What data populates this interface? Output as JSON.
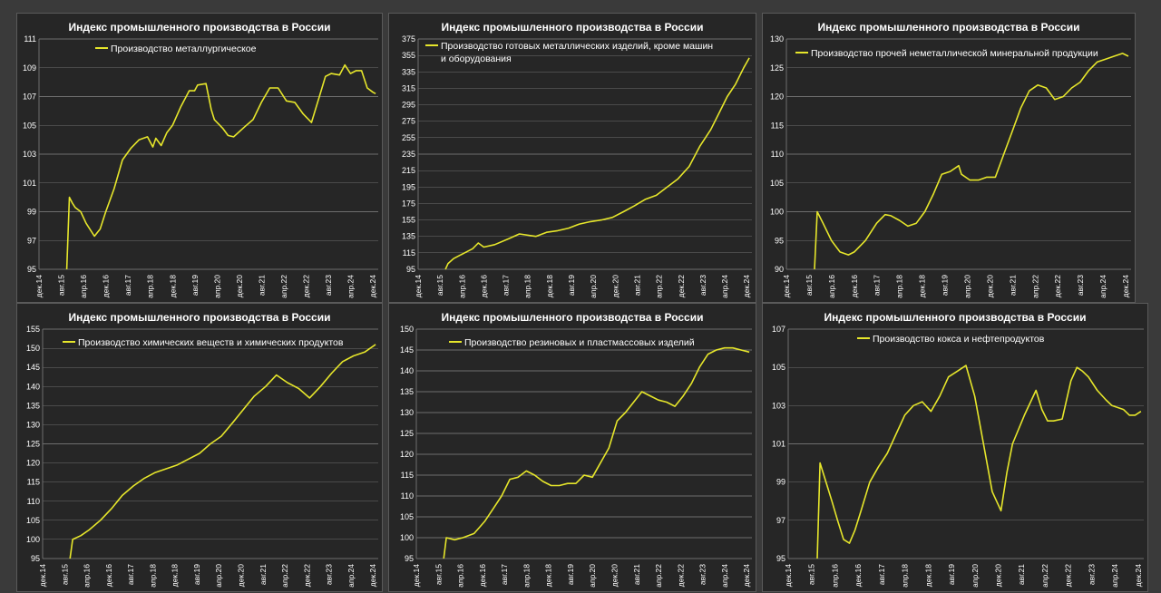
{
  "chart_data": [
    {
      "type": "line",
      "title": "Индекс промышленного производства в России",
      "series": [
        {
          "name": "Производство металлургическое",
          "x": [
            2015.75,
            2015.83,
            2015.92,
            2016.0,
            2016.17,
            2016.33,
            2016.58,
            2016.75,
            2016.92,
            2017.17,
            2017.42,
            2017.67,
            2017.92,
            2018.17,
            2018.33,
            2018.42,
            2018.58,
            2018.75,
            2018.92,
            2019.17,
            2019.42,
            2019.58,
            2019.67,
            2019.92,
            2020.08,
            2020.17,
            2020.42,
            2020.58,
            2020.75,
            2021.08,
            2021.33,
            2021.58,
            2021.83,
            2022.08,
            2022.33,
            2022.58,
            2022.83,
            2023.08,
            2023.33,
            2023.5,
            2023.67,
            2023.92,
            2024.08,
            2024.25,
            2024.42,
            2024.58,
            2024.75,
            2024.92,
            2025.0
          ],
          "values": [
            95.0,
            100.0,
            99.6,
            99.3,
            99.0,
            98.2,
            97.3,
            97.8,
            99.0,
            100.6,
            102.6,
            103.4,
            104.0,
            104.2,
            103.5,
            104.1,
            103.6,
            104.5,
            105.0,
            106.3,
            107.4,
            107.4,
            107.8,
            107.9,
            106.1,
            105.4,
            104.8,
            104.3,
            104.2,
            104.9,
            105.4,
            106.6,
            107.6,
            107.6,
            106.7,
            106.6,
            105.8,
            105.2,
            107.1,
            108.4,
            108.6,
            108.5,
            109.2,
            108.6,
            108.8,
            108.8,
            107.6,
            107.3,
            107.2
          ]
        }
      ],
      "ylim": [
        95,
        111
      ],
      "yticks": [
        95,
        97,
        99,
        101,
        103,
        105,
        107,
        109,
        111
      ],
      "xlim": [
        2014.92,
        2025.08
      ],
      "xtick_labels": [
        "дек.14",
        "авг.15",
        "апр.16",
        "дек.16",
        "авг.17",
        "апр.18",
        "дек.18",
        "авг.19",
        "апр.20",
        "дек.20",
        "авг.21",
        "апр.22",
        "дек.22",
        "авг.23",
        "апр.24",
        "дек.24"
      ],
      "grid": true,
      "legend_placement": "top-left"
    },
    {
      "type": "line",
      "title": "Индекс промышленного производства в России",
      "series": [
        {
          "name": "Производство готовых металлических изделий, кроме машин и оборудования",
          "x": [
            2015.75,
            2015.83,
            2016.0,
            2016.33,
            2016.58,
            2016.75,
            2016.92,
            2017.25,
            2017.67,
            2018.0,
            2018.5,
            2018.83,
            2019.17,
            2019.5,
            2019.83,
            2020.17,
            2020.5,
            2020.83,
            2021.17,
            2021.5,
            2021.83,
            2022.17,
            2022.5,
            2022.83,
            2023.17,
            2023.5,
            2023.83,
            2024.08,
            2024.33,
            2024.58,
            2024.83,
            2025.0
          ],
          "values": [
            95,
            102,
            108,
            115,
            120,
            127,
            122,
            125,
            132,
            138,
            135,
            140,
            142,
            145,
            150,
            153,
            155,
            158,
            165,
            172,
            180,
            185,
            195,
            205,
            220,
            245,
            265,
            285,
            305,
            320,
            340,
            352
          ]
        }
      ],
      "ylim": [
        95,
        375
      ],
      "yticks": [
        95,
        115,
        135,
        155,
        175,
        195,
        215,
        235,
        255,
        275,
        295,
        315,
        335,
        355,
        375
      ],
      "xlim": [
        2014.92,
        2025.08
      ],
      "xtick_labels": [
        "дек.14",
        "авг.15",
        "апр.16",
        "дек.16",
        "авг.17",
        "апр.18",
        "дек.18",
        "авг.19",
        "апр.20",
        "дек.20",
        "авг.21",
        "апр.22",
        "дек.22",
        "авг.23",
        "апр.24",
        "дек.24"
      ],
      "grid": true,
      "legend_placement": "top-left"
    },
    {
      "type": "line",
      "title": "Индекс промышленного производства в России",
      "series": [
        {
          "name": "Производство прочей неметаллической минеральной продукции",
          "x": [
            2015.75,
            2015.83,
            2016.0,
            2016.25,
            2016.5,
            2016.75,
            2016.92,
            2017.25,
            2017.58,
            2017.83,
            2018.0,
            2018.25,
            2018.5,
            2018.75,
            2019.0,
            2019.25,
            2019.5,
            2019.75,
            2020.0,
            2020.08,
            2020.33,
            2020.58,
            2020.83,
            2021.08,
            2021.33,
            2021.58,
            2021.83,
            2022.08,
            2022.33,
            2022.58,
            2022.83,
            2023.08,
            2023.33,
            2023.58,
            2023.83,
            2024.08,
            2024.33,
            2024.58,
            2024.83,
            2025.0
          ],
          "values": [
            90,
            100,
            98,
            95,
            93,
            92.5,
            93,
            95,
            98,
            99.5,
            99.3,
            98.5,
            97.5,
            98,
            100,
            103,
            106.5,
            107,
            108,
            106.5,
            105.5,
            105.5,
            106,
            106,
            110,
            114,
            118,
            121,
            122,
            121.5,
            119.5,
            120,
            121.5,
            122.5,
            124.5,
            126,
            126.5,
            127,
            127.5,
            127
          ]
        }
      ],
      "ylim": [
        90,
        130
      ],
      "yticks": [
        90,
        95,
        100,
        105,
        110,
        115,
        120,
        125,
        130
      ],
      "xlim": [
        2014.92,
        2025.08
      ],
      "xtick_labels": [
        "дек.14",
        "авг.15",
        "апр.16",
        "дек.16",
        "авг.17",
        "апр.18",
        "дек.18",
        "авг.19",
        "апр.20",
        "дек.20",
        "авг.21",
        "апр.22",
        "дек.22",
        "авг.23",
        "апр.24",
        "дек.24"
      ],
      "grid": true,
      "legend_placement": "top-left"
    },
    {
      "type": "line",
      "title": "Индекс промышленного производства в России",
      "series": [
        {
          "name": "Производство химических веществ и химических продуктов",
          "x": [
            2015.75,
            2015.83,
            2016.08,
            2016.33,
            2016.67,
            2017.0,
            2017.33,
            2017.67,
            2018.0,
            2018.33,
            2018.67,
            2019.0,
            2019.33,
            2019.67,
            2020.0,
            2020.33,
            2020.67,
            2021.0,
            2021.33,
            2021.67,
            2022.0,
            2022.33,
            2022.67,
            2023.0,
            2023.33,
            2023.67,
            2024.0,
            2024.33,
            2024.67,
            2025.0
          ],
          "values": [
            95,
            100,
            101,
            102.5,
            105,
            108,
            111.5,
            114,
            116,
            117.5,
            118.5,
            119.5,
            121,
            122.5,
            125,
            127,
            130.5,
            134,
            137.5,
            140,
            143,
            141,
            139.5,
            137,
            140,
            143.5,
            146.5,
            148,
            149,
            151
          ]
        }
      ],
      "ylim": [
        95,
        155
      ],
      "yticks": [
        95,
        100,
        105,
        110,
        115,
        120,
        125,
        130,
        135,
        140,
        145,
        150,
        155
      ],
      "xlim": [
        2014.92,
        2025.08
      ],
      "xtick_labels": [
        "дек.14",
        "авг.15",
        "апр.16",
        "дек.16",
        "авг.17",
        "апр.18",
        "дек.18",
        "авг.19",
        "апр.20",
        "дек.20",
        "авг.21",
        "апр.22",
        "дек.22",
        "авг.23",
        "апр.24",
        "дек.24"
      ],
      "grid": true,
      "legend_placement": "top-left"
    },
    {
      "type": "line",
      "title": "Индекс промышленного производства в России",
      "series": [
        {
          "name": "Производство резиновых и пластмассовых изделий",
          "x": [
            2015.75,
            2015.83,
            2016.08,
            2016.33,
            2016.67,
            2017.0,
            2017.25,
            2017.5,
            2017.75,
            2018.0,
            2018.25,
            2018.5,
            2018.75,
            2019.0,
            2019.25,
            2019.5,
            2019.75,
            2020.0,
            2020.25,
            2020.5,
            2020.75,
            2021.0,
            2021.25,
            2021.5,
            2021.75,
            2022.0,
            2022.25,
            2022.5,
            2022.75,
            2023.0,
            2023.25,
            2023.5,
            2023.75,
            2024.0,
            2024.25,
            2024.5,
            2024.75,
            2025.0
          ],
          "values": [
            95,
            100,
            99.5,
            100,
            101,
            104,
            107,
            110,
            114,
            114.5,
            116,
            115,
            113.5,
            112.5,
            112.5,
            113,
            113,
            115,
            114.5,
            118,
            121.5,
            128,
            130,
            132.5,
            135,
            134,
            133,
            132.5,
            131.5,
            134,
            137,
            141,
            144,
            145,
            145.5,
            145.5,
            145,
            144.5
          ]
        }
      ],
      "ylim": [
        95,
        150
      ],
      "yticks": [
        95,
        100,
        105,
        110,
        115,
        120,
        125,
        130,
        135,
        140,
        145,
        150
      ],
      "xlim": [
        2014.92,
        2025.08
      ],
      "xtick_labels": [
        "дек.14",
        "авг.15",
        "апр.16",
        "дек.16",
        "авг.17",
        "апр.18",
        "дек.18",
        "авг.19",
        "апр.20",
        "дек.20",
        "авг.21",
        "апр.22",
        "дек.22",
        "авг.23",
        "апр.24",
        "дек.24"
      ],
      "grid": true,
      "legend_placement": "top-left"
    },
    {
      "type": "line",
      "title": "Индекс промышленного производства в России",
      "series": [
        {
          "name": "Производство кокса и нефтепродуктов",
          "x": [
            2015.75,
            2015.83,
            2016.0,
            2016.17,
            2016.33,
            2016.5,
            2016.67,
            2016.83,
            2017.0,
            2017.25,
            2017.5,
            2017.75,
            2018.0,
            2018.25,
            2018.5,
            2018.75,
            2019.0,
            2019.25,
            2019.5,
            2019.75,
            2020.0,
            2020.25,
            2020.5,
            2020.75,
            2021.0,
            2021.17,
            2021.33,
            2021.67,
            2022.0,
            2022.17,
            2022.33,
            2022.5,
            2022.75,
            2023.0,
            2023.17,
            2023.33,
            2023.5,
            2023.75,
            2024.0,
            2024.17,
            2024.33,
            2024.5,
            2024.67,
            2024.83,
            2025.0
          ],
          "values": [
            95,
            100,
            99,
            98,
            97,
            96,
            95.8,
            96.5,
            97.5,
            99,
            99.8,
            100.5,
            101.5,
            102.5,
            103,
            103.2,
            102.7,
            103.5,
            104.5,
            104.8,
            105.1,
            103.5,
            101,
            98.5,
            97.5,
            99.5,
            101,
            102.5,
            103.8,
            102.8,
            102.2,
            102.2,
            102.3,
            104.3,
            105,
            104.8,
            104.5,
            103.8,
            103.3,
            103,
            102.9,
            102.8,
            102.5,
            102.5,
            102.7
          ]
        }
      ],
      "ylim": [
        95,
        107
      ],
      "yticks": [
        95,
        97,
        99,
        101,
        103,
        105,
        107
      ],
      "xlim": [
        2014.92,
        2025.08
      ],
      "xtick_labels": [
        "дек.14",
        "авг.15",
        "апр.16",
        "дек.16",
        "авг.17",
        "апр.18",
        "дек.18",
        "авг.19",
        "апр.20",
        "дек.20",
        "авг.21",
        "апр.22",
        "дек.22",
        "авг.23",
        "апр.24",
        "дек.24"
      ],
      "grid": true,
      "legend_placement": "top-left"
    }
  ]
}
